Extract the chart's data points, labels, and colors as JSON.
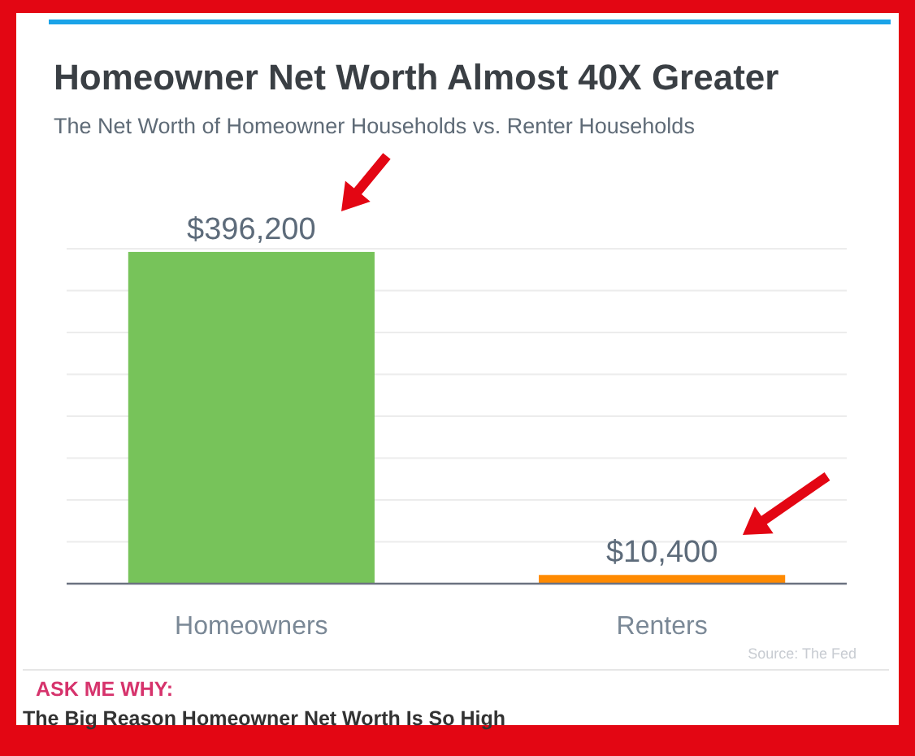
{
  "chart_data": {
    "type": "bar",
    "title": "Homeowner Net Worth Almost 40X Greater",
    "subtitle": "The Net Worth of Homeowner Households vs. Renter Households",
    "categories": [
      "Homeowners",
      "Renters"
    ],
    "values": [
      396200,
      10400
    ],
    "colors": [
      "#77c35a",
      "#ff8a00"
    ],
    "value_labels": [
      "$396,200",
      "$10,400"
    ],
    "ylim": [
      0,
      400000
    ],
    "yticks": [
      {
        "value": 0,
        "label": null
      },
      {
        "value": 50000,
        "label": null
      },
      {
        "value": 100000,
        "label": null
      },
      {
        "value": 150000,
        "label": null
      },
      {
        "value": 200000,
        "label": null
      },
      {
        "value": 250000,
        "label": null
      },
      {
        "value": 300000,
        "label": null
      },
      {
        "value": 350000,
        "label": null
      },
      {
        "value": 400000,
        "label": null
      }
    ],
    "tick_labels": "x",
    "grid": "y",
    "annotations": [
      "Source: The Fed",
      "ASK ME WHY:",
      "The Big Reason Homeowner Net Worth Is So High"
    ]
  }
}
